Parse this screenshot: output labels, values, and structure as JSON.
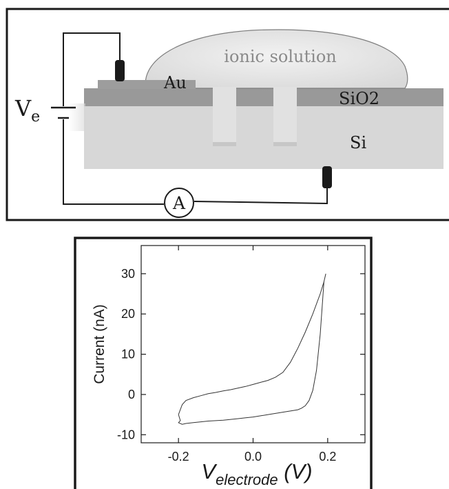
{
  "diagram": {
    "voltage_label": "V",
    "voltage_subscript": "e",
    "ammeter_label": "A",
    "solution_label": "ionic solution",
    "electrode_label": "Au",
    "oxide_label": "SiO2",
    "substrate_label": "Si"
  },
  "chart_data": {
    "type": "line",
    "title": "",
    "xlabel": "V",
    "xlabel_subscript": "electrode",
    "xlabel_unit": "(V)",
    "ylabel": "Current (nA)",
    "xlim": [
      -0.3,
      0.3
    ],
    "ylim": [
      -12,
      37
    ],
    "xticks": [
      -0.2,
      0.0,
      0.2
    ],
    "xtick_labels": [
      "-0.2",
      "0.0",
      "0.2"
    ],
    "yticks": [
      -10,
      0,
      10,
      20,
      30
    ],
    "ytick_labels": [
      "-10",
      "0",
      "10",
      "20",
      "30"
    ],
    "grid": false,
    "series": [
      {
        "x": [
          -0.2,
          -0.19,
          -0.18,
          -0.16,
          -0.14,
          -0.12,
          -0.1,
          -0.08,
          -0.06,
          -0.04,
          -0.02,
          0.0,
          0.02,
          0.04,
          0.06,
          0.08,
          0.1,
          0.12,
          0.14,
          0.16,
          0.18,
          0.19,
          0.195,
          0.19,
          0.18,
          0.17,
          0.16,
          0.15,
          0.14,
          0.13,
          0.12,
          0.1,
          0.08,
          0.06,
          0.04,
          0.02,
          0.0,
          -0.02,
          -0.04,
          -0.06,
          -0.08,
          -0.1,
          -0.12,
          -0.14,
          -0.16,
          -0.18,
          -0.19,
          -0.2,
          -0.195,
          -0.2
        ],
        "y": [
          -5,
          -2.5,
          -1.5,
          -0.8,
          -0.3,
          0.2,
          0.5,
          0.9,
          1.2,
          1.6,
          2.0,
          2.5,
          3.0,
          3.5,
          4.3,
          5.5,
          8.0,
          11.5,
          15.5,
          20.0,
          25.0,
          28.0,
          30.0,
          28.0,
          15.0,
          6.0,
          1.0,
          -1.5,
          -2.8,
          -3.4,
          -3.8,
          -4.1,
          -4.4,
          -4.7,
          -5.0,
          -5.3,
          -5.6,
          -5.8,
          -6.0,
          -6.2,
          -6.4,
          -6.5,
          -6.6,
          -6.8,
          -7.0,
          -7.2,
          -7.4,
          -7.0,
          -6.5,
          -5
        ]
      }
    ]
  }
}
